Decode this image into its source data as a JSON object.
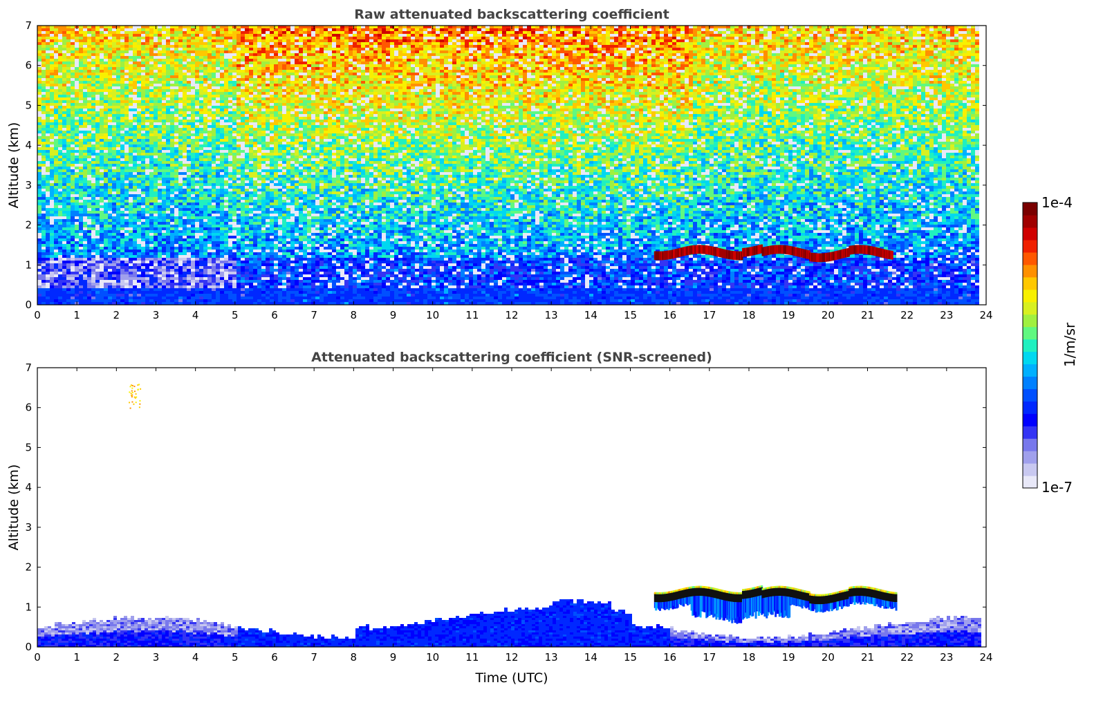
{
  "chart_data": [
    {
      "type": "heatmap",
      "title": "Raw attenuated backscattering coefficient",
      "xlabel": "",
      "ylabel": "Altitude (km)",
      "xlim": [
        0,
        24
      ],
      "ylim": [
        0,
        7
      ],
      "x_ticks": [
        "0",
        "1",
        "2",
        "3",
        "4",
        "5",
        "6",
        "7",
        "8",
        "9",
        "10",
        "11",
        "12",
        "13",
        "14",
        "15",
        "16",
        "17",
        "18",
        "19",
        "20",
        "21",
        "22",
        "23",
        "24"
      ],
      "y_ticks": [
        "0",
        "1",
        "2",
        "3",
        "4",
        "5",
        "6",
        "7"
      ],
      "data_extent_hours": [
        0,
        23.8
      ],
      "features": [
        {
          "name": "boundary layer",
          "x_range": [
            0,
            23.8
          ],
          "top_km": [
            0.3,
            0.6
          ],
          "level": "low"
        },
        {
          "name": "cloud layer",
          "x_range": [
            15.6,
            21.6
          ],
          "altitude_km": [
            1.2,
            1.45
          ],
          "level": "high"
        },
        {
          "name": "upper-altitude noise",
          "x_range": [
            5,
            16
          ],
          "altitude_km": [
            3,
            7
          ],
          "level": "mid-high"
        }
      ]
    },
    {
      "type": "heatmap",
      "title": "Attenuated backscattering coefficient (SNR-screened)",
      "xlabel": "Time (UTC)",
      "ylabel": "Altitude (km)",
      "xlim": [
        0,
        24
      ],
      "ylim": [
        0,
        7
      ],
      "x_ticks": [
        "0",
        "1",
        "2",
        "3",
        "4",
        "5",
        "6",
        "7",
        "8",
        "9",
        "10",
        "11",
        "12",
        "13",
        "14",
        "15",
        "16",
        "17",
        "18",
        "19",
        "20",
        "21",
        "22",
        "23",
        "24"
      ],
      "y_ticks": [
        "0",
        "1",
        "2",
        "3",
        "4",
        "5",
        "6",
        "7"
      ],
      "data_extent_hours": [
        0,
        23.8
      ],
      "features": [
        {
          "name": "boundary layer",
          "x_range": [
            0,
            23.8
          ],
          "top_km": [
            0.4,
            0.9
          ],
          "level": "low"
        },
        {
          "name": "cloud layer",
          "x_range": [
            15.6,
            21.7
          ],
          "altitude_km": [
            1.2,
            1.45
          ],
          "level": "saturated"
        },
        {
          "name": "elevated aerosol streak",
          "x_range": [
            2.3,
            2.6
          ],
          "altitude_km": [
            6.0,
            6.6
          ],
          "level": "mid-high"
        }
      ]
    }
  ],
  "colorbar": {
    "max_label": "1e-4",
    "min_label": "1e-7",
    "unit_label": "1/m/sr",
    "scale": "log",
    "colors": [
      "#e8e8f8",
      "#c8c8f0",
      "#a0a0ec",
      "#7878ec",
      "#3434f4",
      "#0000ff",
      "#0028ff",
      "#0050ff",
      "#0080ff",
      "#00b0ff",
      "#00d8f0",
      "#20f0c0",
      "#60f880",
      "#a0f040",
      "#d8f020",
      "#f8f000",
      "#ffc800",
      "#ff9000",
      "#ff5800",
      "#f02000",
      "#d00000",
      "#a00000",
      "#7a0000"
    ]
  }
}
